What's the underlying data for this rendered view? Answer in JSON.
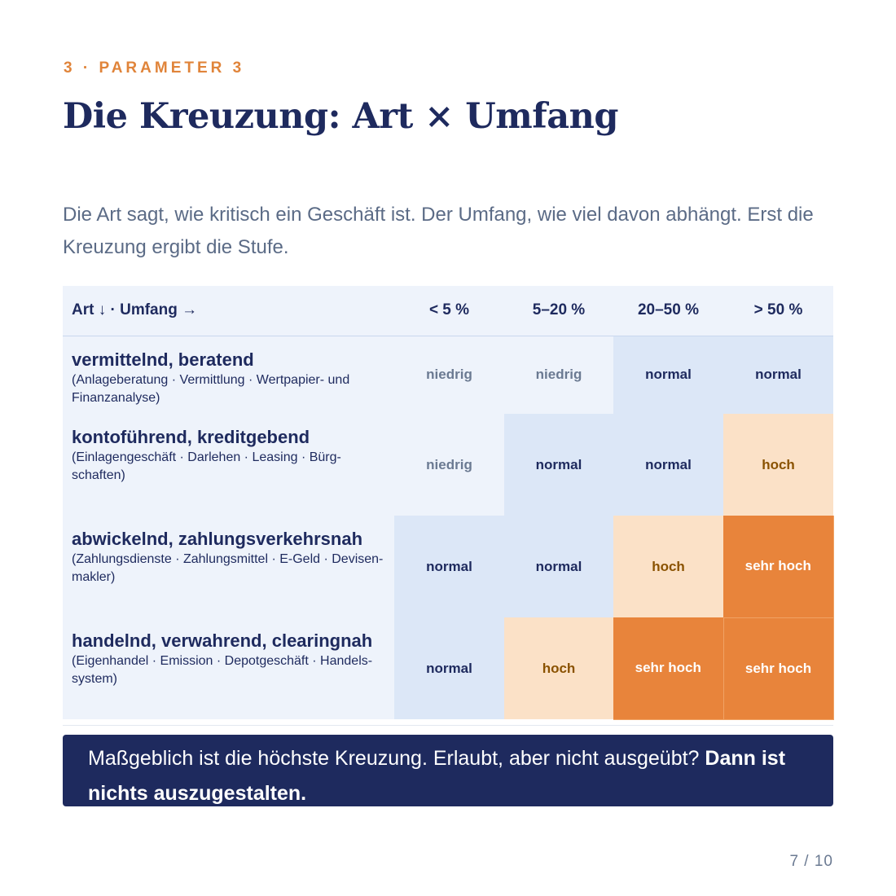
{
  "eyebrow": "3 · PARAMETER 3",
  "title": "Die Kreuzung: Art × Umfang",
  "lead": "Die Art sagt, wie kritisch ein Geschäft ist. Der Umfang, wie viel davon abhängt. Erst die Kreuzung ergibt die Stufe.",
  "matrix": {
    "corner": "Art ↓ · Umfang →",
    "columns": [
      "< 5 %",
      "5–20 %",
      "20–50 %",
      "> 50 %"
    ],
    "rows": [
      {
        "title": "vermittelnd, beratend",
        "sub": "(Anlageberatung · Vermittlung · Wertpapier- und Finanzanalyse)",
        "cells": [
          "niedrig",
          "niedrig",
          "normal",
          "normal"
        ]
      },
      {
        "title": "kontoführend, kreditgebend",
        "sub": "(Einlagengeschäft · Darlehen · Leasing · Bürg-schaften)",
        "cells": [
          "niedrig",
          "normal",
          "normal",
          "hoch"
        ]
      },
      {
        "title": "abwickelnd, zahlungsverkehrsnah",
        "sub": "(Zahlungsdienste · Zahlungsmittel · E-Geld · Devisen-makler)",
        "cells": [
          "normal",
          "normal",
          "hoch",
          "sehr hoch"
        ]
      },
      {
        "title": "handelnd, verwahrend, clearingnah",
        "sub": "(Eigenhandel · Emission · Depotgeschäft · Handels-system)",
        "cells": [
          "normal",
          "hoch",
          "sehr hoch",
          "sehr hoch"
        ]
      }
    ]
  },
  "callout": {
    "text": "Maßgeblich ist die höchste Kreuzung. Erlaubt, aber nicht ausgeübt? ",
    "emphasis": "Dann ist nichts auszugestalten."
  },
  "pager": "7 / 10",
  "colors": {
    "navy": "#1e2a5e",
    "accent_orange": "#e0843a",
    "niedrig_bg": "#eef3fb",
    "normal_bg": "#dce7f7",
    "hoch_bg": "#fbe1c7",
    "sehr_hoch_bg": "#e8843b"
  }
}
